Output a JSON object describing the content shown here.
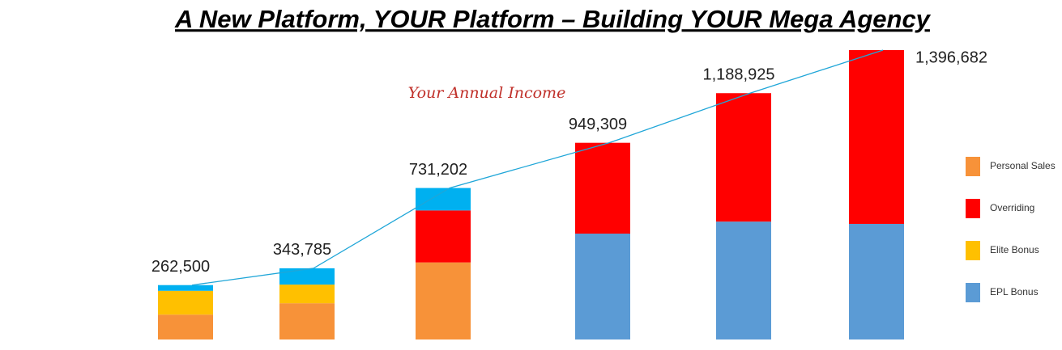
{
  "chart_data": {
    "type": "stacked-bar-line",
    "title": "A New Platform, YOUR Platform – Building YOUR Mega Agency",
    "subtitle": "Your Annual Income",
    "categories": [
      null,
      null,
      null,
      null,
      null,
      null
    ],
    "series": [
      {
        "name": "Personal Sales",
        "color": "#f79239",
        "values": [
          120000,
          175000,
          372000,
          null,
          null,
          null
        ]
      },
      {
        "name": "Overriding",
        "color": "#ff0000",
        "values": [
          null,
          null,
          251000,
          438309,
          619925,
          838682
        ]
      },
      {
        "name": "Elite Bonus",
        "color": "#ffc000",
        "values": [
          115000,
          90000,
          null,
          null,
          null,
          null
        ]
      },
      {
        "name": "EPL Bonus",
        "color": "#5b9bd5",
        "values": [
          null,
          null,
          null,
          511000,
          569000,
          558000
        ]
      },
      {
        "color": "#00b0f0",
        "values": [
          27500,
          78785,
          108202,
          null,
          null,
          null
        ]
      }
    ],
    "totals": {
      "color": "#1fa6d8",
      "values": [
        262500,
        343785,
        731202,
        949309,
        1188925,
        1396682
      ],
      "value_labels": [
        "262,500",
        "343,785",
        "731,202",
        "949,309",
        "1,188,925",
        "1,396,682"
      ]
    }
  }
}
